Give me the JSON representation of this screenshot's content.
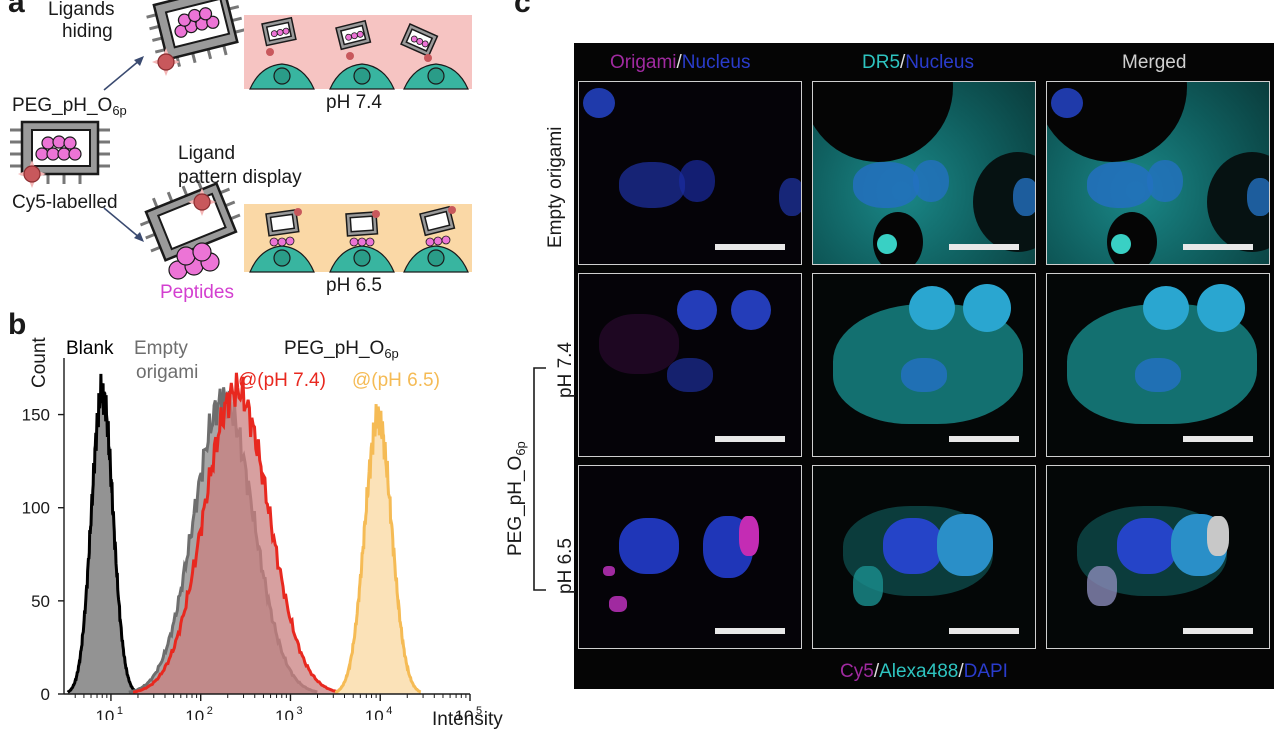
{
  "panel_a": {
    "letter": "a",
    "ligands_hiding_1": "Ligands",
    "ligands_hiding_2": "hiding",
    "construct_name": "PEG_pH_O",
    "construct_sub": "6p",
    "cy5_label": "Cy5-labelled",
    "ligand_display_1": "Ligand",
    "ligand_display_2": "pattern display",
    "peptides_label": "Peptides",
    "ph_74": "pH 7.4",
    "ph_65": "pH 6.5",
    "colors": {
      "pink_bg": "#f6c4c2",
      "orange_bg": "#fad8a6",
      "cell": "#38b5a0",
      "peptide": "#ec74d6",
      "dye": "#c8585c",
      "frame": "#8c8c8c"
    }
  },
  "panel_b": {
    "letter": "b",
    "label_blank": "Blank",
    "label_empty_1": "Empty",
    "label_empty_2": "origami",
    "label_construct": "PEG_pH_O",
    "label_construct_sub": "6p",
    "label_ph74": "@(pH 7.4)",
    "label_ph65": "@(pH 6.5)",
    "colors": {
      "blank": "#000000",
      "empty": "#6e6e6e",
      "ph74": "#e8281f",
      "ph65": "#f5bb55"
    }
  },
  "chart_data": {
    "type": "area",
    "xlabel": "Intensity",
    "ylabel": "Count",
    "x_scale": "log",
    "xlim": [
      3,
      100000
    ],
    "ylim": [
      0,
      175
    ],
    "yticks": [
      0,
      50,
      100,
      150
    ],
    "xticks": [
      {
        "value": 10,
        "label": "10"
      },
      {
        "value": 100,
        "label": "10"
      },
      {
        "value": 1000,
        "label": "10"
      },
      {
        "value": 10000,
        "label": "10"
      },
      {
        "value": 100000,
        "label": "10"
      }
    ],
    "xtick_exponents": [
      "1",
      "2",
      "3",
      "4",
      "5"
    ],
    "series": [
      {
        "name": "Blank",
        "color": "#000000",
        "peak_x": 8,
        "peak_y": 162,
        "width_decades": 0.12
      },
      {
        "name": "Empty origami",
        "color": "#6e6e6e",
        "peak_x": 180,
        "peak_y": 158,
        "width_decades": 0.33
      },
      {
        "name": "@(pH 7.4)",
        "color": "#e8281f",
        "peak_x": 250,
        "peak_y": 163,
        "width_decades": 0.36
      },
      {
        "name": "@(pH 6.5)",
        "color": "#f5bb55",
        "peak_x": 9500,
        "peak_y": 148,
        "width_decades": 0.15
      }
    ]
  },
  "panel_c": {
    "letter": "c",
    "col_headers": [
      {
        "a": "Origami",
        "sep": "/",
        "b": "Nucleus",
        "a_color": "#a02aa0",
        "b_color": "#2a3ccc"
      },
      {
        "a": "DR5",
        "sep": "/",
        "b": "Nucleus",
        "a_color": "#2ec4c0",
        "b_color": "#2a3ccc"
      },
      {
        "a": "Merged",
        "sep": "",
        "b": "",
        "a_color": "#d0d0d0",
        "b_color": "#d0d0d0"
      }
    ],
    "row_empty": "Empty origami",
    "row_ph74": "pH 7.4",
    "row_ph65": "pH 6.5",
    "group_label": "PEG_pH_O",
    "group_label_sub": "6p",
    "legend": {
      "cy5": "Cy5",
      "s1": "/",
      "alexa": "Alexa488",
      "s2": "/",
      "dapi": "DAPI"
    },
    "colors": {
      "cy5": "#a02aa0",
      "alexa": "#2ec4c0",
      "dapi": "#2a3ccc",
      "nucleus": "#2a4fe0"
    }
  }
}
